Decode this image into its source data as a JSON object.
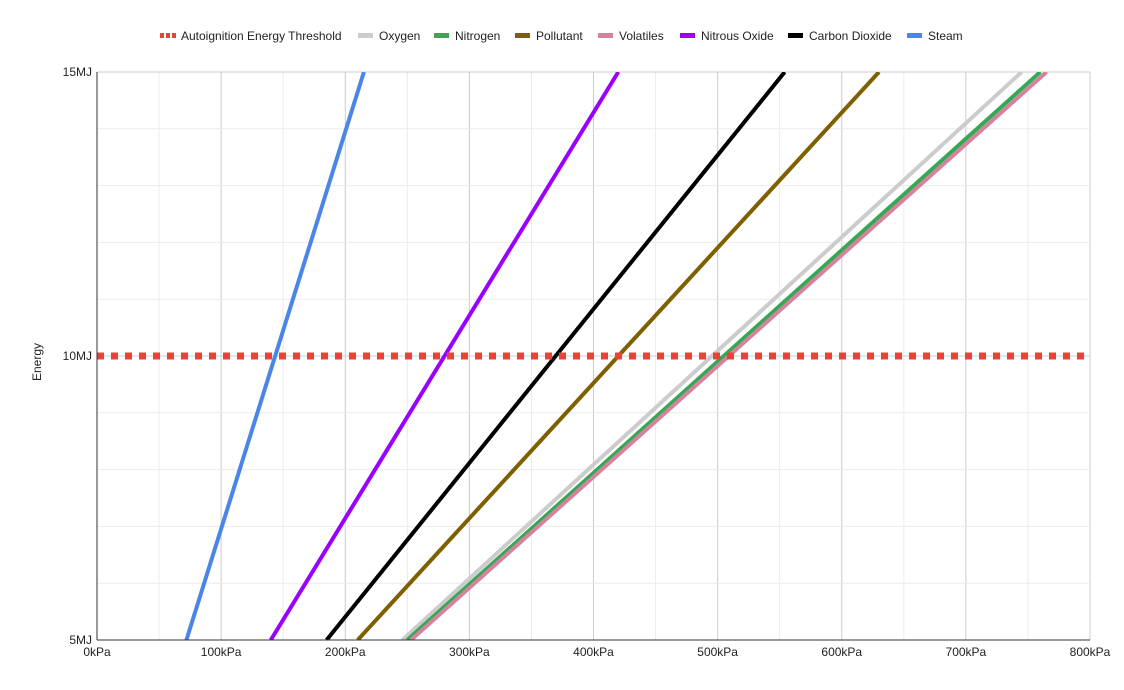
{
  "chart_data": {
    "type": "line",
    "title": "",
    "xlabel": "",
    "ylabel": "Energy",
    "xlim": [
      0,
      800
    ],
    "ylim": [
      5,
      15
    ],
    "x_unit": "kPa",
    "y_unit": "MJ",
    "x_ticks": [
      "0kPa",
      "100kPa",
      "200kPa",
      "300kPa",
      "400kPa",
      "500kPa",
      "600kPa",
      "700kPa",
      "800kPa"
    ],
    "y_ticks": [
      "5MJ",
      "10MJ",
      "15MJ"
    ],
    "grid": true,
    "legend_position": "top",
    "series": [
      {
        "name": "Autoignition Energy Threshold",
        "color": "#ea4335",
        "style": "dotted",
        "points": [
          [
            0,
            10
          ],
          [
            800,
            10
          ]
        ]
      },
      {
        "name": "Oxygen",
        "color": "#cccccc",
        "style": "solid",
        "points": [
          [
            246,
            5
          ],
          [
            745,
            15
          ]
        ]
      },
      {
        "name": "Nitrogen",
        "color": "#34a853",
        "style": "solid",
        "points": [
          [
            250,
            5
          ],
          [
            760,
            15
          ]
        ]
      },
      {
        "name": "Pollutant",
        "color": "#7f6000",
        "style": "solid",
        "points": [
          [
            210,
            5
          ],
          [
            630,
            15
          ]
        ]
      },
      {
        "name": "Volatiles",
        "color": "#d5829f",
        "style": "solid",
        "points": [
          [
            253,
            5
          ],
          [
            765,
            15
          ]
        ]
      },
      {
        "name": "Nitrous Oxide",
        "color": "#9900ff",
        "style": "solid",
        "points": [
          [
            140,
            5
          ],
          [
            420,
            15
          ]
        ]
      },
      {
        "name": "Carbon Dioxide",
        "color": "#000000",
        "style": "solid",
        "points": [
          [
            185,
            5
          ],
          [
            554,
            15
          ]
        ]
      },
      {
        "name": "Steam",
        "color": "#4a86e8",
        "style": "solid",
        "points": [
          [
            72,
            5
          ],
          [
            215,
            15
          ]
        ]
      }
    ]
  }
}
